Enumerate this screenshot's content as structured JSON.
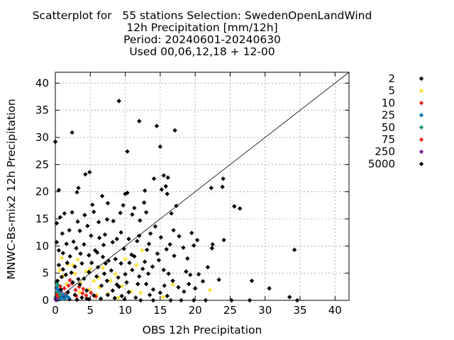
{
  "chart_data": {
    "type": "scatter",
    "title_lines": [
      "Scatterplot for   55 stations Selection: SwedenOpenLandWind",
      "12h Precipitation [mm/12h]",
      "Period: 20240601-20240630",
      "Used 00,06,12,18 + 12-00"
    ],
    "xlabel": "OBS 12h Precipitation",
    "ylabel": "MNWC-Bs-mix2 12h Precipitation",
    "xlim": [
      0,
      42
    ],
    "ylim": [
      0,
      42
    ],
    "xticks": [
      0,
      5,
      10,
      15,
      20,
      25,
      30,
      35,
      40
    ],
    "yticks": [
      0,
      5,
      10,
      15,
      20,
      25,
      30,
      35,
      40
    ],
    "grid": true,
    "diagonal_line": true,
    "legend_position": "right",
    "marker": "diamond",
    "series": [
      {
        "name": "2",
        "color": "#000000",
        "points": [
          [
            0.1,
            0.3
          ],
          [
            0.5,
            0.2
          ],
          [
            1.2,
            0.5
          ],
          [
            2.0,
            0.2
          ],
          [
            3.1,
            0.1
          ],
          [
            4.5,
            0.3
          ]
        ]
      },
      {
        "name": "5",
        "color": "#ffe13a",
        "points": [
          [
            0.4,
            2.8
          ],
          [
            1.1,
            4.5
          ],
          [
            2.5,
            6.5
          ],
          [
            3.2,
            7.5
          ],
          [
            4.4,
            5.3
          ],
          [
            5.5,
            3.6
          ],
          [
            6.3,
            2.4
          ],
          [
            7.5,
            1.2
          ],
          [
            9.0,
            0.5
          ],
          [
            8.6,
            4.8
          ],
          [
            10.0,
            7.6
          ],
          [
            11.6,
            6.5
          ],
          [
            22.1,
            1.9
          ],
          [
            0.9,
            7.8
          ],
          [
            1.8,
            6.6
          ],
          [
            2.8,
            4.9
          ],
          [
            3.6,
            3.2
          ],
          [
            4.8,
            2.0
          ],
          [
            5.9,
            1.0
          ],
          [
            6.8,
            6.0
          ],
          [
            7.9,
            3.6
          ],
          [
            12.2,
            1.4
          ],
          [
            15.4,
            0.6
          ],
          [
            0.6,
            5.5
          ],
          [
            1.6,
            3.0
          ],
          [
            3.5,
            1.5
          ],
          [
            5.0,
            5.8
          ],
          [
            6.2,
            4.2
          ],
          [
            9.5,
            2.6
          ],
          [
            10.8,
            1.6
          ],
          [
            12.4,
            9.2
          ],
          [
            16.8,
            2.9
          ]
        ]
      },
      {
        "name": "10",
        "color": "#e8231d",
        "points": [
          [
            0.3,
            0.9
          ],
          [
            0.8,
            1.6
          ],
          [
            1.3,
            2.2
          ],
          [
            1.9,
            2.7
          ],
          [
            2.4,
            3.1
          ],
          [
            2.9,
            1.9
          ],
          [
            3.4,
            2.5
          ],
          [
            3.9,
            1.3
          ],
          [
            4.4,
            0.9
          ],
          [
            0.7,
            2.6
          ],
          [
            1.5,
            1.0
          ],
          [
            2.1,
            3.7
          ],
          [
            3.0,
            0.8
          ],
          [
            4.0,
            2.1
          ],
          [
            5.1,
            1.4
          ],
          [
            5.8,
            0.7
          ]
        ]
      },
      {
        "name": "25",
        "color": "#0a78bf",
        "points": [
          [
            0.1,
            0.4
          ],
          [
            0.3,
            0.8
          ],
          [
            0.5,
            1.2
          ],
          [
            0.7,
            1.7
          ],
          [
            0.2,
            2.3
          ],
          [
            0.9,
            0.5
          ],
          [
            1.1,
            1.1
          ],
          [
            1.3,
            0.3
          ],
          [
            1.6,
            0.8
          ],
          [
            0.4,
            1.9
          ],
          [
            0.6,
            0.2
          ],
          [
            1.9,
            0.5
          ]
        ]
      },
      {
        "name": "50",
        "color": "#1a9c72",
        "points": [
          [
            0.05,
            0.6
          ],
          [
            0.2,
            1.4
          ],
          [
            0.35,
            2.9
          ],
          [
            0.15,
            3.3
          ],
          [
            0.45,
            0.4
          ],
          [
            0.6,
            1.1
          ],
          [
            0.25,
            0.1
          ]
        ]
      },
      {
        "name": "75",
        "color": "#e8231d",
        "points": [
          [
            0.1,
            0.2
          ],
          [
            0.3,
            0.5
          ],
          [
            0.2,
            1.0
          ]
        ]
      },
      {
        "name": "250",
        "color": "#7a1fa2",
        "points": [
          [
            0.05,
            0.1
          ],
          [
            0.15,
            0.05
          ],
          [
            0.1,
            0.3
          ]
        ]
      },
      {
        "name": "5000",
        "color": "#000000",
        "points": [
          [
            0.0,
            29.2
          ],
          [
            2.4,
            30.9
          ],
          [
            9.1,
            36.7
          ],
          [
            12.0,
            33.0
          ],
          [
            14.5,
            32.1
          ],
          [
            17.1,
            31.3
          ],
          [
            10.3,
            27.4
          ],
          [
            15.0,
            28.3
          ],
          [
            0.5,
            20.3
          ],
          [
            3.1,
            19.9
          ],
          [
            4.3,
            23.2
          ],
          [
            4.9,
            23.6
          ],
          [
            3.3,
            20.7
          ],
          [
            6.7,
            19.2
          ],
          [
            10.0,
            19.6
          ],
          [
            10.3,
            19.8
          ],
          [
            12.8,
            20.2
          ],
          [
            15.5,
            23.0
          ],
          [
            16.1,
            22.6
          ],
          [
            15.8,
            21.0
          ],
          [
            15.2,
            20.4
          ],
          [
            14.1,
            22.4
          ],
          [
            22.3,
            20.7
          ],
          [
            24.0,
            22.4
          ],
          [
            23.9,
            20.9
          ],
          [
            25.6,
            17.3
          ],
          [
            26.4,
            16.9
          ],
          [
            16.6,
            16.0
          ],
          [
            17.3,
            17.4
          ],
          [
            16.0,
            19.6
          ],
          [
            12.7,
            18.0
          ],
          [
            11.3,
            17.0
          ],
          [
            13.0,
            16.2
          ],
          [
            9.3,
            16.1
          ],
          [
            9.7,
            17.5
          ],
          [
            11.0,
            15.8
          ],
          [
            1.3,
            16.0
          ],
          [
            0.7,
            15.3
          ],
          [
            0.2,
            14.2
          ],
          [
            2.4,
            16.2
          ],
          [
            3.2,
            14.5
          ],
          [
            4.2,
            15.7
          ],
          [
            5.5,
            16.3
          ],
          [
            6.2,
            14.4
          ],
          [
            7.4,
            14.9
          ],
          [
            7.5,
            17.9
          ],
          [
            5.3,
            17.6
          ],
          [
            3.5,
            12.8
          ],
          [
            5.1,
            11.9
          ],
          [
            8.3,
            14.6
          ],
          [
            9.4,
            12.5
          ],
          [
            10.5,
            11.3
          ],
          [
            12.1,
            14.7
          ],
          [
            13.6,
            12.3
          ],
          [
            14.3,
            13.6
          ],
          [
            15.1,
            11.6
          ],
          [
            16.9,
            12.9
          ],
          [
            17.7,
            11.8
          ],
          [
            19.5,
            12.4
          ],
          [
            20.3,
            11.1
          ],
          [
            22.5,
            10.3
          ],
          [
            24.1,
            11.1
          ],
          [
            22.4,
            9.6
          ],
          [
            19.8,
            10.1
          ],
          [
            18.3,
            9.7
          ],
          [
            15.9,
            9.4
          ],
          [
            16.4,
            10.3
          ],
          [
            13.4,
            10.4
          ],
          [
            13.1,
            9.3
          ],
          [
            12.0,
            11.9
          ],
          [
            10.9,
            8.4
          ],
          [
            9.8,
            9.5
          ],
          [
            8.8,
            11.3
          ],
          [
            8.2,
            10.7
          ],
          [
            7.1,
            12.1
          ],
          [
            6.3,
            11.5
          ],
          [
            5.7,
            9.2
          ],
          [
            4.1,
            10.3
          ],
          [
            3.0,
            9.6
          ],
          [
            2.6,
            10.8
          ],
          [
            1.6,
            10.4
          ],
          [
            0.2,
            10.7
          ],
          [
            0.5,
            9.2
          ],
          [
            1.1,
            8.7
          ],
          [
            2.1,
            8.1
          ],
          [
            3.6,
            8.6
          ],
          [
            4.8,
            8.3
          ],
          [
            6.8,
            8.0
          ],
          [
            7.6,
            7.3
          ],
          [
            8.6,
            7.6
          ],
          [
            9.4,
            6.8
          ],
          [
            10.6,
            6.9
          ],
          [
            11.3,
            8.1
          ],
          [
            12.8,
            7.1
          ],
          [
            13.9,
            6.2
          ],
          [
            14.8,
            7.4
          ],
          [
            15.5,
            5.6
          ],
          [
            16.2,
            4.9
          ],
          [
            16.8,
            3.6
          ],
          [
            18.7,
            5.3
          ],
          [
            19.3,
            4.7
          ],
          [
            19.1,
            3.0
          ],
          [
            17.6,
            2.4
          ],
          [
            18.4,
            1.6
          ],
          [
            20.0,
            2.2
          ],
          [
            21.1,
            3.5
          ],
          [
            23.4,
            3.8
          ],
          [
            28.1,
            3.6
          ],
          [
            30.6,
            2.2
          ],
          [
            33.5,
            0.6
          ],
          [
            34.2,
            9.3
          ],
          [
            34.6,
            0.0
          ],
          [
            27.8,
            0.0
          ],
          [
            25.2,
            0.0
          ],
          [
            21.5,
            0.0
          ],
          [
            19.8,
            0.0
          ],
          [
            18.0,
            0.0
          ],
          [
            16.5,
            0.0
          ],
          [
            14.0,
            0.0
          ],
          [
            12.2,
            0.0
          ],
          [
            11.8,
            3.0
          ],
          [
            10.2,
            3.3
          ],
          [
            9.1,
            2.5
          ],
          [
            8.2,
            1.8
          ],
          [
            7.4,
            3.6
          ],
          [
            6.6,
            2.7
          ],
          [
            5.9,
            4.4
          ],
          [
            4.8,
            5.2
          ],
          [
            4.1,
            4.0
          ],
          [
            3.3,
            3.9
          ],
          [
            2.8,
            6.2
          ],
          [
            1.7,
            6.9
          ],
          [
            1.1,
            5.7
          ],
          [
            0.5,
            6.5
          ],
          [
            0.9,
            4.3
          ],
          [
            2.3,
            5.1
          ],
          [
            3.8,
            6.8
          ],
          [
            5.2,
            6.9
          ],
          [
            6.1,
            6.1
          ],
          [
            7.0,
            4.9
          ],
          [
            8.0,
            5.5
          ],
          [
            9.0,
            4.2
          ],
          [
            10.0,
            4.8
          ],
          [
            11.0,
            5.6
          ],
          [
            12.0,
            4.4
          ],
          [
            13.0,
            3.0
          ],
          [
            14.0,
            2.0
          ],
          [
            15.0,
            1.4
          ],
          [
            16.0,
            0.8
          ],
          [
            13.5,
            1.0
          ],
          [
            11.5,
            0.5
          ],
          [
            10.5,
            1.5
          ],
          [
            9.5,
            0.8
          ],
          [
            8.5,
            0.4
          ],
          [
            7.5,
            1.0
          ],
          [
            6.5,
            0.3
          ],
          [
            5.5,
            0.9
          ],
          [
            4.5,
            1.8
          ],
          [
            3.5,
            2.9
          ],
          [
            2.5,
            3.3
          ],
          [
            1.5,
            4.7
          ],
          [
            0.3,
            3.6
          ],
          [
            0.8,
            2.0
          ],
          [
            1.8,
            1.5
          ],
          [
            2.8,
            1.0
          ],
          [
            3.8,
            0.5
          ],
          [
            4.8,
            0.2
          ],
          [
            12.5,
            5.8
          ],
          [
            14.6,
            8.6
          ],
          [
            17.0,
            8.2
          ],
          [
            11.7,
            10.9
          ],
          [
            6.9,
            10.2
          ],
          [
            4.6,
            13.7
          ],
          [
            2.0,
            12.9
          ],
          [
            1.0,
            12.3
          ],
          [
            20.5,
            4.8
          ],
          [
            21.8,
            6.1
          ],
          [
            18.9,
            7.7
          ],
          [
            15.6,
            2.7
          ],
          [
            13.3,
            4.9
          ],
          [
            9.9,
            0.2
          ],
          [
            8.8,
            2.9
          ],
          [
            7.2,
            6.8
          ],
          [
            6.0,
            8.8
          ]
        ]
      }
    ]
  }
}
